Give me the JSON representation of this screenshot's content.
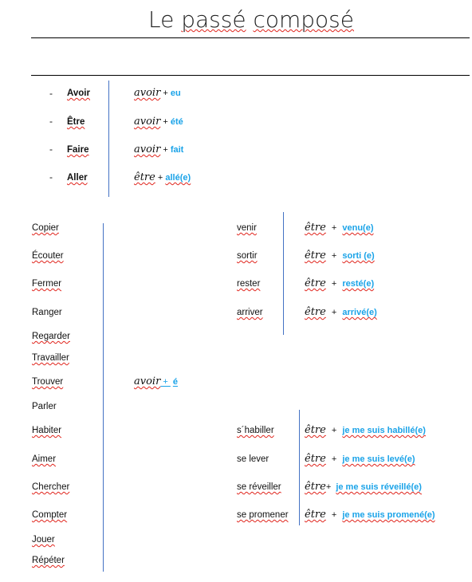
{
  "title": {
    "pre": "Le ",
    "w1": "passé",
    "mid": " ",
    "w2": "composé"
  },
  "irregular": [
    {
      "dash": "-",
      "verb": "Avoir",
      "aux": "avoir",
      "plus": " + ",
      "participle": "eu"
    },
    {
      "dash": "-",
      "verb": "Être",
      "aux": "avoir",
      "plus": " + ",
      "participle": "été"
    },
    {
      "dash": "-",
      "verb": "Faire",
      "aux": "avoir",
      "plus": " + ",
      "participle": "fait"
    },
    {
      "dash": "-",
      "verb": "Aller",
      "aux": "être",
      "plus": " + ",
      "participle": "allé(e)"
    }
  ],
  "er_verbs": [
    "Copier",
    "Écouter",
    "Fermer",
    "Ranger",
    "Regarder",
    "Travailler",
    "Trouver",
    "Parler",
    "Habiter",
    "Aimer",
    "Chercher",
    "Compter",
    "Jouer",
    "Répéter"
  ],
  "er_rule": {
    "aux": "avoir",
    "plus": " + ",
    "ending": "é"
  },
  "etre_verbs": [
    {
      "verb": "venir",
      "aux": "être",
      "plus": " + ",
      "participle": "venu(e)"
    },
    {
      "verb": "sortir",
      "aux": "être",
      "plus": " + ",
      "participle": "sorti (e)"
    },
    {
      "verb": "rester",
      "aux": "être",
      "plus": " + ",
      "participle": "resté(e)"
    },
    {
      "verb": "arriver",
      "aux": "être",
      "plus": " + ",
      "participle": "arrivé(e)"
    }
  ],
  "reflexive_verbs": [
    {
      "verb": "s´habiller",
      "aux": "être",
      "plus": " + ",
      "participle": "je me suis habillé(e)"
    },
    {
      "verb": "se lever",
      "aux": "être",
      "plus": " + ",
      "participle": "je me suis levé(e)"
    },
    {
      "verb": "se réveiller",
      "aux": "être",
      "plus": "+ ",
      "participle": "je me suis réveillé(e)"
    },
    {
      "verb": "se promener",
      "aux": "être",
      "plus": " + ",
      "participle": "je me suis promené(e)"
    }
  ]
}
